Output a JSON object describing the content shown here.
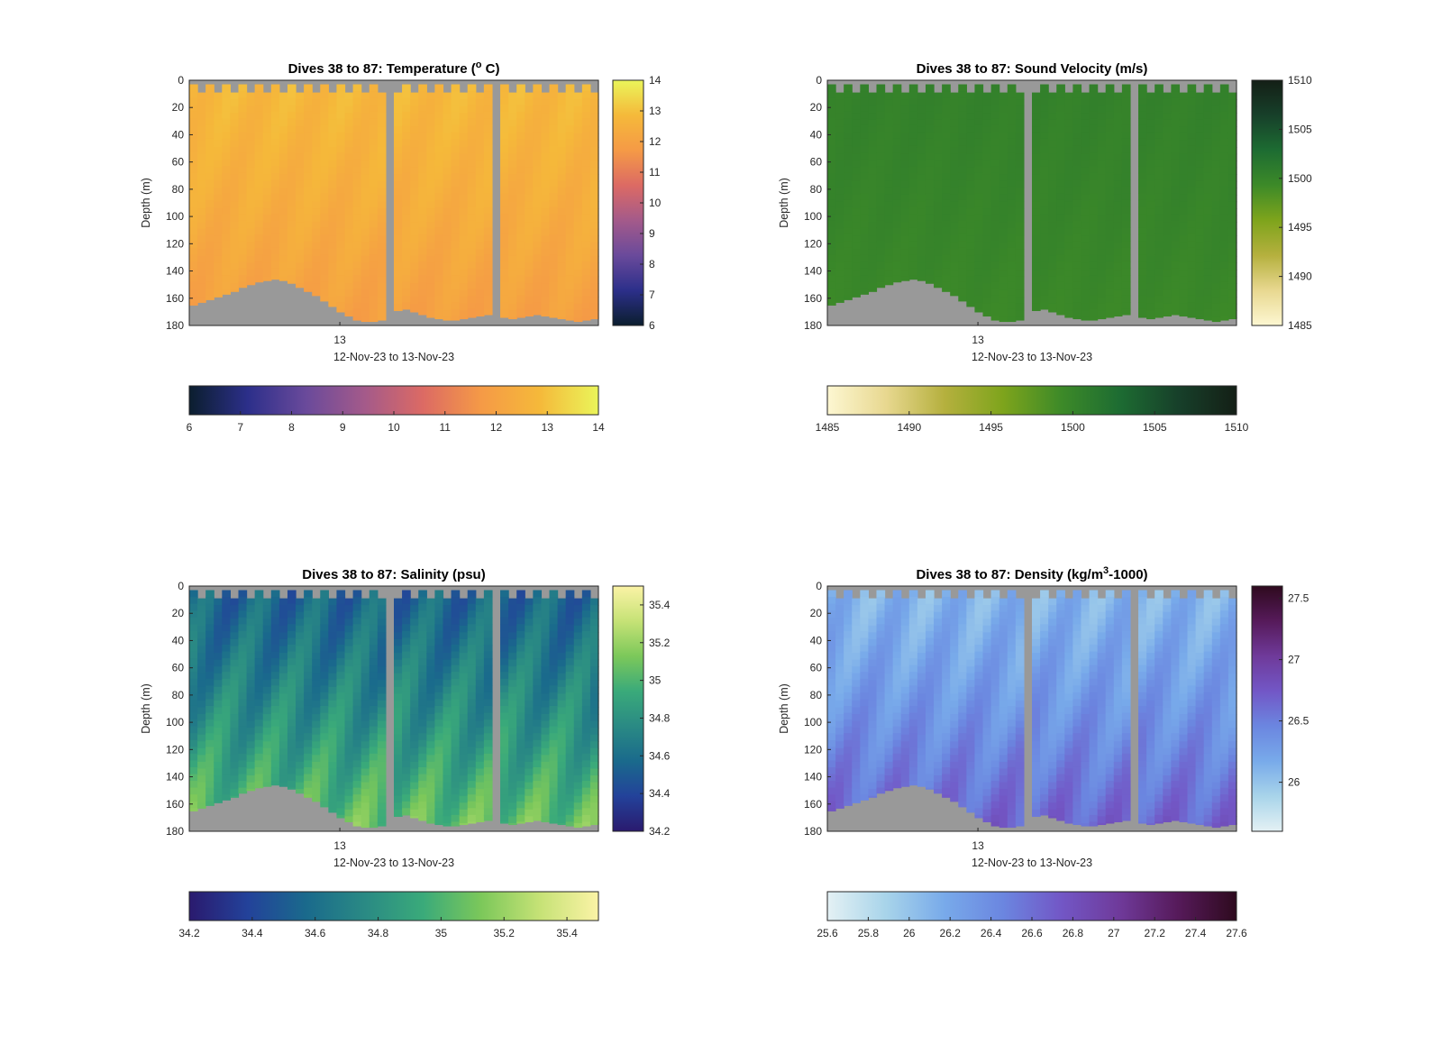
{
  "chart_data": [
    {
      "type": "heatmap",
      "title": "Dives 38 to 87: Temperature (",
      "title_sup": "o",
      "title_post": " C)",
      "ylabel": "Depth (m)",
      "xlabel": "12-Nov-23 to 13-Nov-23",
      "xtick_label": "13",
      "y_ticks": [
        0,
        20,
        40,
        60,
        80,
        100,
        120,
        140,
        160,
        180
      ],
      "ylim": [
        0,
        180
      ],
      "y_reversed": true,
      "x_dives": [
        38,
        87
      ],
      "colormap": [
        "#0b1e2e",
        "#2c2f8a",
        "#6a4a9b",
        "#a45a8a",
        "#dc6a64",
        "#f59a46",
        "#f5b93a",
        "#eaf55a"
      ],
      "clim": [
        6,
        14
      ],
      "colorbar_ticks": [
        6,
        7,
        8,
        9,
        10,
        11,
        12,
        13,
        14
      ],
      "hcolorbar_ticks": [
        6,
        7,
        8,
        9,
        10,
        11,
        12,
        13,
        14
      ],
      "profile": {
        "surface": 12.8,
        "deep": 11.9
      },
      "gaps_dive_index": [
        24,
        37
      ],
      "bottom_depth_m": [
        165,
        163,
        161,
        159,
        157,
        155,
        152,
        150,
        148,
        147,
        146,
        147,
        149,
        152,
        155,
        158,
        162,
        166,
        170,
        173,
        176,
        177,
        177,
        176,
        172,
        169,
        168,
        170,
        172,
        174,
        175,
        176,
        176,
        175,
        174,
        173,
        172,
        173,
        174,
        175,
        174,
        173,
        172,
        173,
        174,
        175,
        176,
        177,
        176,
        175
      ],
      "missing_color": "#999999"
    },
    {
      "type": "heatmap",
      "title": "Dives 38 to 87: Sound Velocity (m/s)",
      "ylabel": "Depth (m)",
      "xlabel": "12-Nov-23 to 13-Nov-23",
      "xtick_label": "13",
      "y_ticks": [
        0,
        20,
        40,
        60,
        80,
        100,
        120,
        140,
        160,
        180
      ],
      "ylim": [
        0,
        180
      ],
      "y_reversed": true,
      "x_dives": [
        38,
        87
      ],
      "colormap": [
        "#fdf7d2",
        "#e8d890",
        "#b5b03e",
        "#7ea41c",
        "#3d8a28",
        "#1d6c32",
        "#17402a",
        "#141f16"
      ],
      "clim": [
        1485,
        1510
      ],
      "colorbar_ticks": [
        1485,
        1490,
        1495,
        1500,
        1505,
        1510
      ],
      "hcolorbar_ticks": [
        1485,
        1490,
        1495,
        1500,
        1505,
        1510
      ],
      "profile": {
        "surface": 1500.3,
        "deep": 1499.5
      },
      "gaps_dive_index": [
        24,
        37
      ],
      "bottom_depth_m": [
        165,
        163,
        161,
        159,
        157,
        155,
        152,
        150,
        148,
        147,
        146,
        147,
        149,
        152,
        155,
        158,
        162,
        166,
        170,
        173,
        176,
        177,
        177,
        176,
        172,
        169,
        168,
        170,
        172,
        174,
        175,
        176,
        176,
        175,
        174,
        173,
        172,
        173,
        174,
        175,
        174,
        173,
        172,
        173,
        174,
        175,
        176,
        177,
        176,
        175
      ],
      "missing_color": "#999999"
    },
    {
      "type": "heatmap",
      "title": "Dives 38 to 87: Salinity (psu)",
      "ylabel": "Depth (m)",
      "xlabel": "12-Nov-23 to 13-Nov-23",
      "xtick_label": "13",
      "y_ticks": [
        0,
        20,
        40,
        60,
        80,
        100,
        120,
        140,
        160,
        180
      ],
      "ylim": [
        0,
        180
      ],
      "y_reversed": true,
      "x_dives": [
        38,
        87
      ],
      "colormap": [
        "#2a1a6e",
        "#23429a",
        "#1a6a8c",
        "#2a8a84",
        "#3aaa7a",
        "#7cc85a",
        "#c6e276",
        "#fbf3a6"
      ],
      "clim": [
        34.2,
        35.5
      ],
      "colorbar_ticks": [
        34.2,
        34.4,
        34.6,
        34.8,
        35,
        35.2,
        35.4
      ],
      "hcolorbar_ticks": [
        34.2,
        34.4,
        34.6,
        34.8,
        35,
        35.2,
        35.4
      ],
      "profile": {
        "surface": 34.55,
        "deep": 35.1
      },
      "gaps_dive_index": [
        24,
        37
      ],
      "bottom_depth_m": [
        165,
        163,
        161,
        159,
        157,
        155,
        152,
        150,
        148,
        147,
        146,
        147,
        149,
        152,
        155,
        158,
        162,
        166,
        170,
        173,
        176,
        177,
        177,
        176,
        172,
        169,
        168,
        170,
        172,
        174,
        175,
        176,
        176,
        175,
        174,
        173,
        172,
        173,
        174,
        175,
        174,
        173,
        172,
        173,
        174,
        175,
        176,
        177,
        176,
        175
      ],
      "missing_color": "#999999"
    },
    {
      "type": "heatmap",
      "title": "Dives 38 to 87: Density (kg/m",
      "title_sup": "3",
      "title_post": "-1000)",
      "ylabel": "Depth (m)",
      "xlabel": "12-Nov-23 to 13-Nov-23",
      "xtick_label": "13",
      "y_ticks": [
        0,
        20,
        40,
        60,
        80,
        100,
        120,
        140,
        160,
        180
      ],
      "ylim": [
        0,
        180
      ],
      "y_reversed": true,
      "x_dives": [
        38,
        87
      ],
      "colormap": [
        "#e4f1f4",
        "#a8d4ea",
        "#78aaea",
        "#6b86e0",
        "#7257c6",
        "#6f3a9a",
        "#561a5a",
        "#2e0a1e"
      ],
      "clim": [
        25.6,
        27.6
      ],
      "colorbar_ticks": [
        26,
        26.5,
        27,
        27.5
      ],
      "hcolorbar_ticks": [
        25.6,
        25.8,
        26,
        26.2,
        26.4,
        26.6,
        26.8,
        27,
        27.2,
        27.4,
        27.6
      ],
      "profile": {
        "surface": 26.1,
        "deep": 26.7
      },
      "gaps_dive_index": [
        24,
        37
      ],
      "bottom_depth_m": [
        165,
        163,
        161,
        159,
        157,
        155,
        152,
        150,
        148,
        147,
        146,
        147,
        149,
        152,
        155,
        158,
        162,
        166,
        170,
        173,
        176,
        177,
        177,
        176,
        172,
        169,
        168,
        170,
        172,
        174,
        175,
        176,
        176,
        175,
        174,
        173,
        172,
        173,
        174,
        175,
        174,
        173,
        172,
        173,
        174,
        175,
        176,
        177,
        176,
        175
      ],
      "missing_color": "#999999"
    }
  ]
}
